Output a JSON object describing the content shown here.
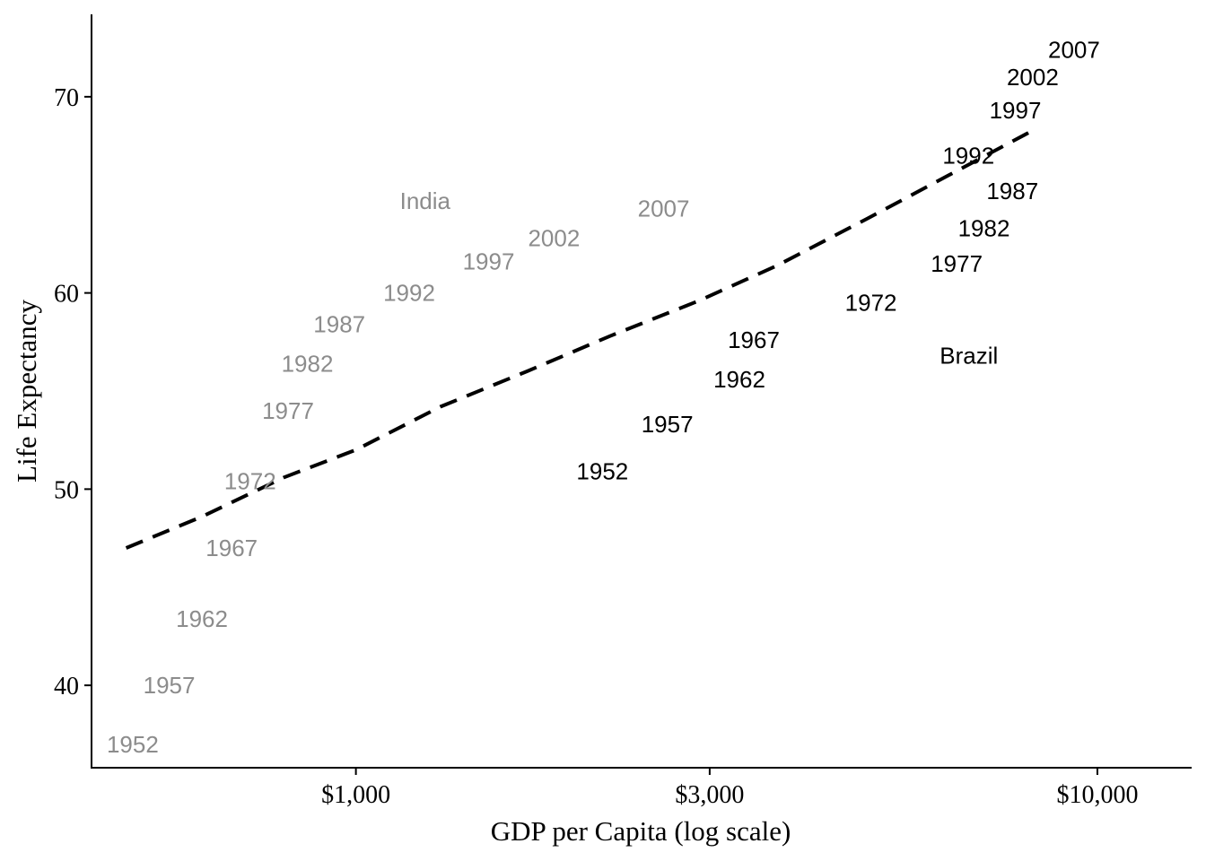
{
  "chart_data": {
    "type": "scatter",
    "title": "",
    "xlabel": "GDP per Capita (log scale)",
    "ylabel": "Life Expectancy",
    "x_scale": "log10",
    "xlim": [
      440,
      13400
    ],
    "ylim": [
      35.8,
      74.2
    ],
    "x_ticks": [
      {
        "value": 1000,
        "label": "$1,000"
      },
      {
        "value": 3000,
        "label": "$3,000"
      },
      {
        "value": 10000,
        "label": "$10,000"
      }
    ],
    "y_ticks": [
      {
        "value": 40,
        "label": "40"
      },
      {
        "value": 50,
        "label": "50"
      },
      {
        "value": 60,
        "label": "60"
      },
      {
        "value": 70,
        "label": "70"
      }
    ],
    "grid": false,
    "series": [
      {
        "name": "India",
        "color": "#8c8c8c",
        "name_label": {
          "text": "India",
          "x": 1240,
          "y": 64.7
        },
        "points": [
          {
            "label": "1952",
            "x": 500,
            "y": 37.0
          },
          {
            "label": "1957",
            "x": 560,
            "y": 40.0
          },
          {
            "label": "1962",
            "x": 620,
            "y": 43.4
          },
          {
            "label": "1967",
            "x": 680,
            "y": 47.0
          },
          {
            "label": "1972",
            "x": 720,
            "y": 50.4
          },
          {
            "label": "1977",
            "x": 810,
            "y": 54.0
          },
          {
            "label": "1982",
            "x": 860,
            "y": 56.4
          },
          {
            "label": "1987",
            "x": 950,
            "y": 58.4
          },
          {
            "label": "1992",
            "x": 1180,
            "y": 60.0
          },
          {
            "label": "1997",
            "x": 1510,
            "y": 61.6
          },
          {
            "label": "2002",
            "x": 1850,
            "y": 62.8
          },
          {
            "label": "2007",
            "x": 2600,
            "y": 64.3
          }
        ]
      },
      {
        "name": "Brazil",
        "color": "#000000",
        "name_label": {
          "text": "Brazil",
          "x": 6710,
          "y": 56.8
        },
        "points": [
          {
            "label": "1952",
            "x": 2150,
            "y": 50.9
          },
          {
            "label": "1957",
            "x": 2630,
            "y": 53.3
          },
          {
            "label": "1962",
            "x": 3290,
            "y": 55.6
          },
          {
            "label": "1967",
            "x": 3440,
            "y": 57.6
          },
          {
            "label": "1972",
            "x": 4950,
            "y": 59.5
          },
          {
            "label": "1977",
            "x": 6460,
            "y": 61.5
          },
          {
            "label": "1982",
            "x": 7030,
            "y": 63.3
          },
          {
            "label": "1987",
            "x": 7680,
            "y": 65.2
          },
          {
            "label": "1992",
            "x": 6700,
            "y": 67.0
          },
          {
            "label": "1997",
            "x": 7750,
            "y": 69.3
          },
          {
            "label": "2002",
            "x": 8180,
            "y": 71.0
          },
          {
            "label": "2007",
            "x": 9300,
            "y": 72.4
          }
        ]
      }
    ],
    "trend_line": {
      "style": "dashed",
      "color": "#000000",
      "x": [
        490,
        620,
        800,
        1000,
        1300,
        1700,
        2200,
        2900,
        3700,
        4900,
        6300,
        8200
      ],
      "y": [
        47.0,
        48.6,
        50.6,
        52.0,
        54.2,
        56.0,
        57.8,
        59.6,
        61.4,
        63.8,
        66.0,
        68.3
      ]
    }
  }
}
